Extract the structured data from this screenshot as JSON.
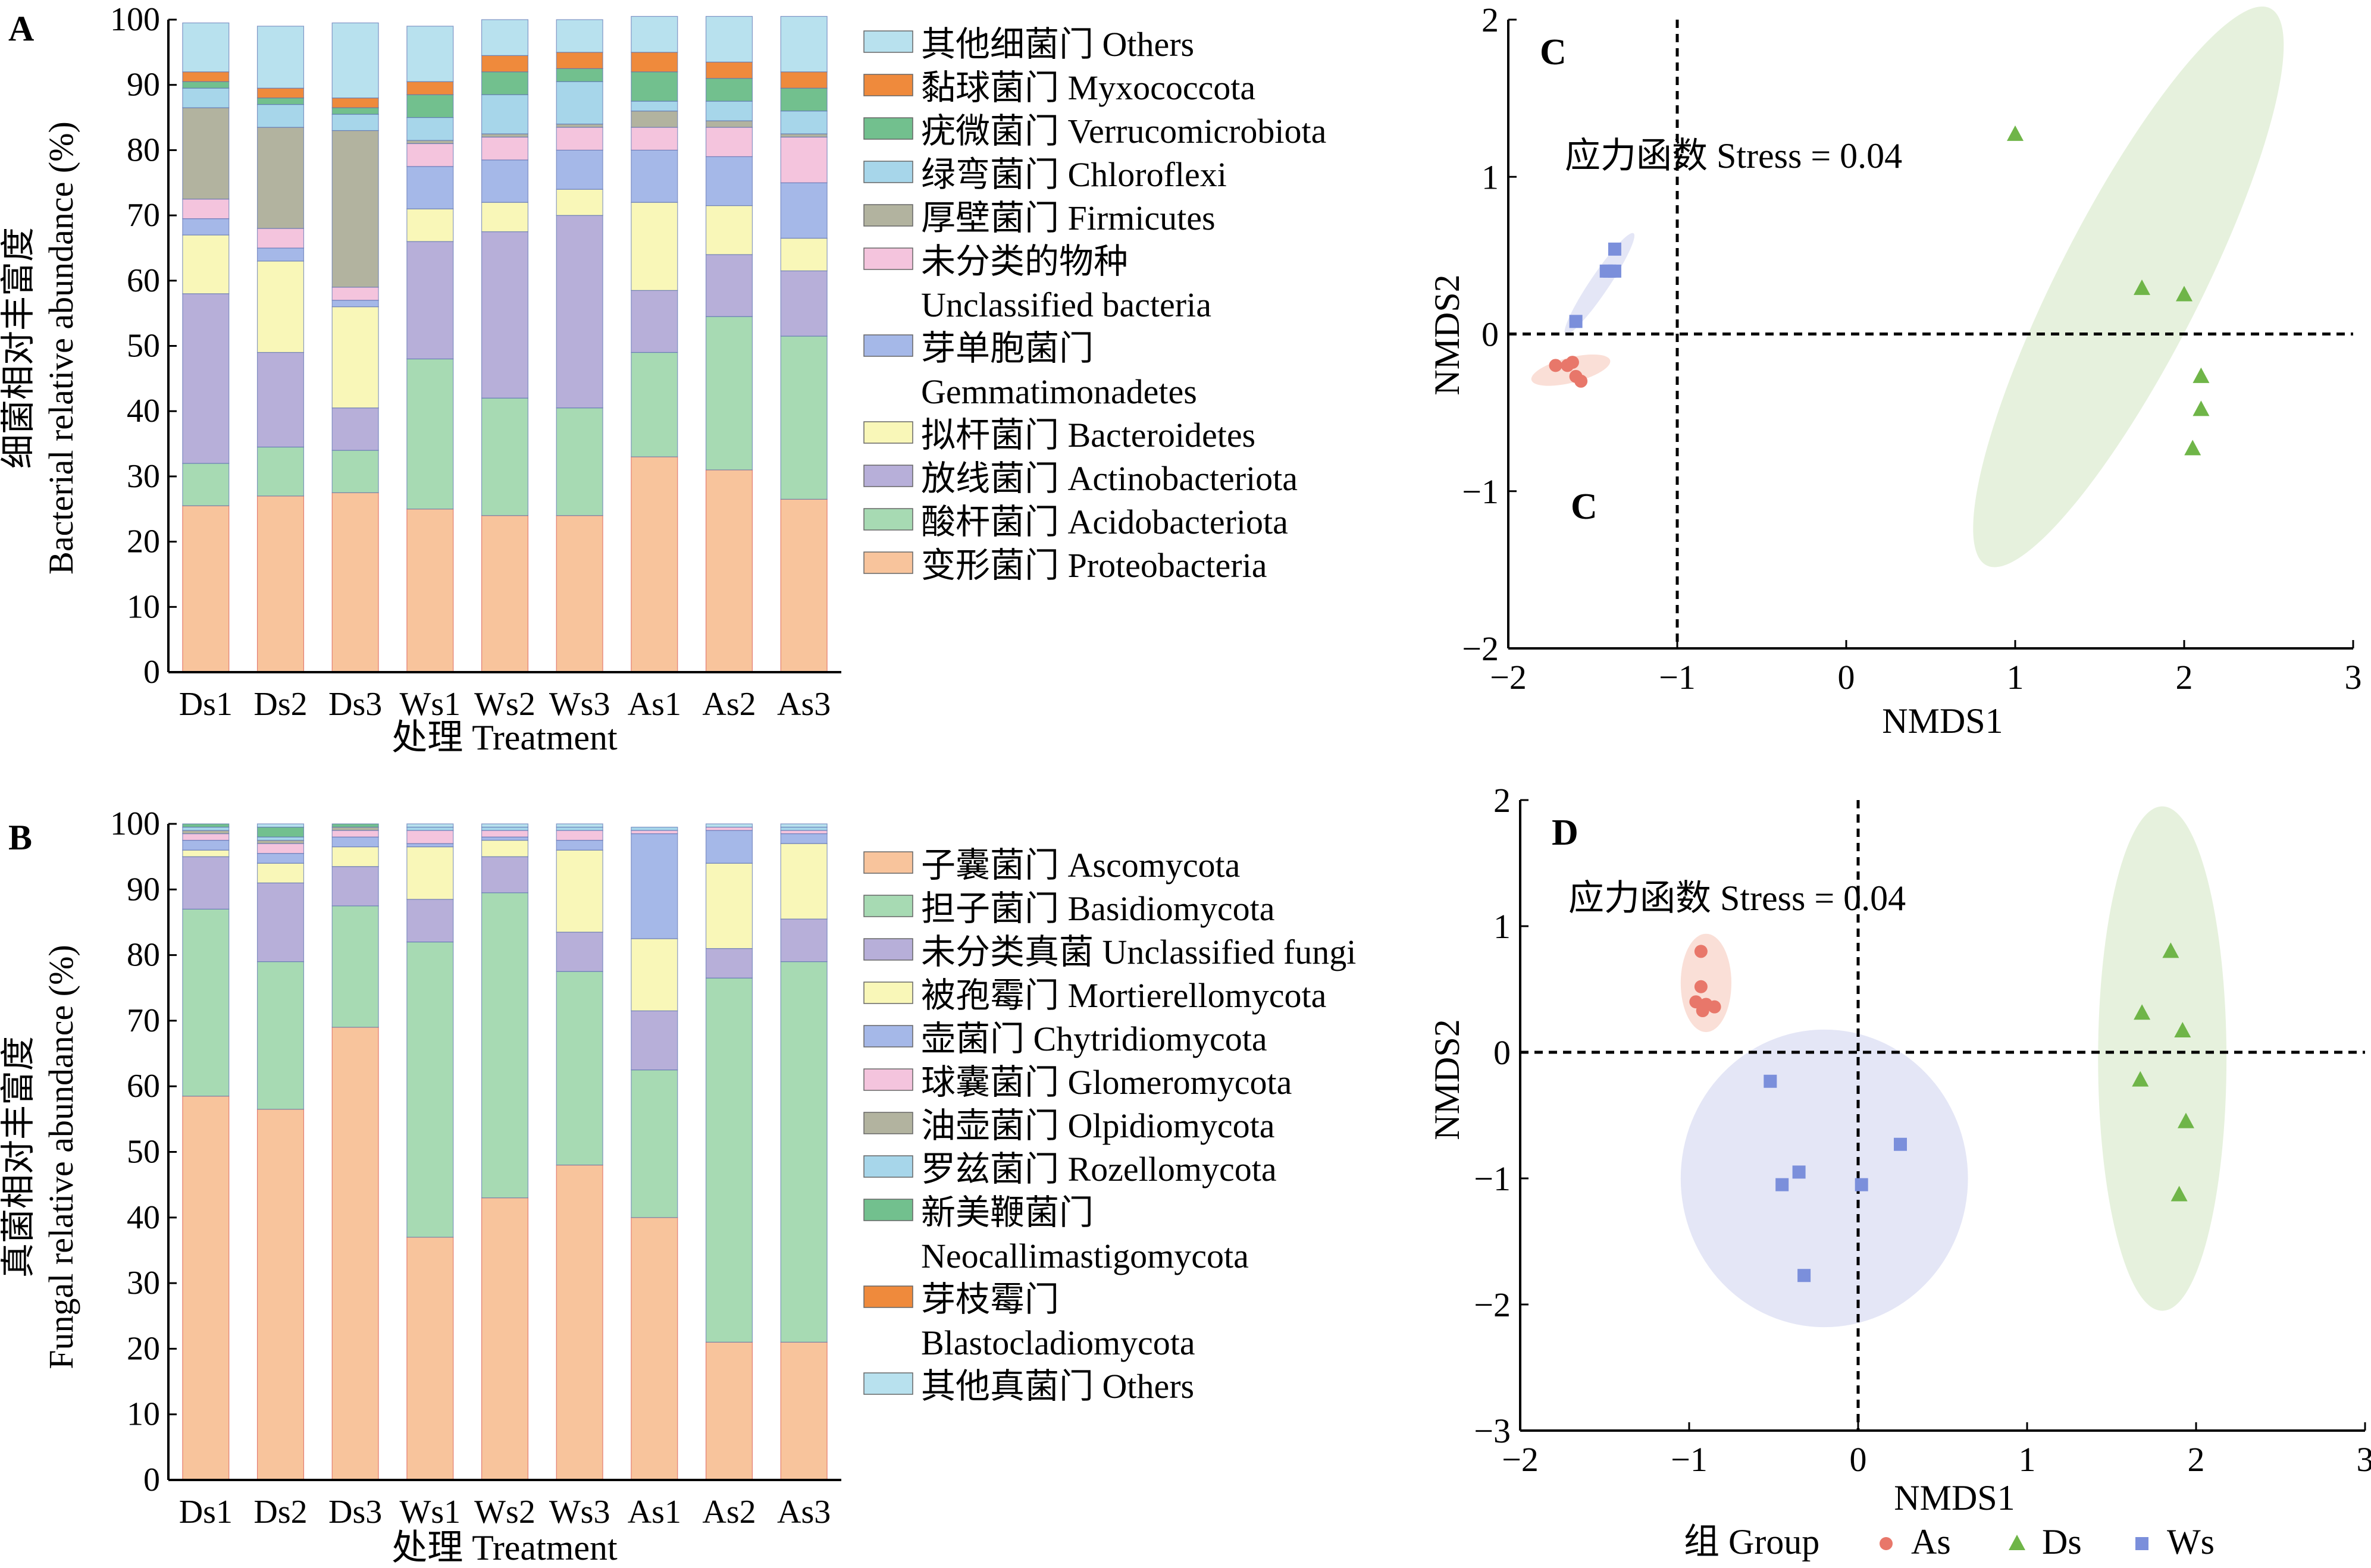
{
  "figure": {
    "panel_letters": [
      "A",
      "B",
      "C",
      "D"
    ],
    "extra_c_label": "C"
  },
  "chart_data": [
    {
      "panel": "A",
      "type": "bar",
      "stacked": true,
      "xlabel": "处理 Treatment",
      "ylabel_cn": "细菌相对丰富度",
      "ylabel_en": "Bacterial relative abundance (%)",
      "ylim": [
        0,
        100
      ],
      "yticks": [
        0,
        10,
        20,
        30,
        40,
        50,
        60,
        70,
        80,
        90,
        100
      ],
      "categories": [
        "Ds1",
        "Ds2",
        "Ds3",
        "Ws1",
        "Ws2",
        "Ws3",
        "As1",
        "As2",
        "As3"
      ],
      "series": [
        {
          "name": "变形菌门 Proteobacteria",
          "color": "#f8c49c",
          "values": [
            25.5,
            27.0,
            27.5,
            25.0,
            24.0,
            24.0,
            33.0,
            31.0,
            26.5
          ]
        },
        {
          "name": "酸杆菌门 Acidobacteriota",
          "color": "#a7dab3",
          "values": [
            6.5,
            7.5,
            6.5,
            23.0,
            18.0,
            16.5,
            16.0,
            23.5,
            25.0
          ]
        },
        {
          "name": "放线菌门 Actinobacteriota",
          "color": "#b7afd9",
          "values": [
            26.0,
            14.5,
            6.5,
            18.0,
            25.5,
            29.5,
            9.5,
            9.5,
            10.0
          ]
        },
        {
          "name": "拟杆菌门 Bacteroidetes",
          "color": "#f9f7b8",
          "values": [
            9.0,
            14.0,
            15.5,
            5.0,
            4.5,
            4.0,
            13.5,
            7.5,
            5.0
          ]
        },
        {
          "name": "芽单胞菌门 Gemmatimonadetes",
          "color": "#a5b8e8",
          "values": [
            2.5,
            2.0,
            1.0,
            6.5,
            6.5,
            6.0,
            8.0,
            7.5,
            8.5
          ]
        },
        {
          "name": "未分类的物种 Unclassified bacteria",
          "color": "#f4c4dd",
          "values": [
            3.0,
            3.0,
            2.0,
            3.5,
            3.5,
            3.5,
            3.5,
            4.5,
            7.0
          ]
        },
        {
          "name": "厚壁菌门 Firmicutes",
          "color": "#b2b39f",
          "values": [
            14.0,
            15.5,
            24.0,
            0.5,
            0.5,
            0.5,
            2.5,
            1.0,
            0.5
          ]
        },
        {
          "name": "绿弯菌门 Chloroflexi",
          "color": "#a7d6ea",
          "values": [
            3.0,
            3.5,
            2.5,
            3.5,
            6.0,
            6.5,
            1.5,
            3.0,
            3.5
          ]
        },
        {
          "name": "疣微菌门 Verrucomicrobiota",
          "color": "#72c08e",
          "values": [
            1.0,
            1.0,
            1.0,
            3.5,
            3.5,
            2.0,
            4.5,
            3.5,
            3.5
          ]
        },
        {
          "name": "黏球菌门 Myxococcota",
          "color": "#ef8a3c",
          "values": [
            1.5,
            1.5,
            1.5,
            2.0,
            2.5,
            2.5,
            3.0,
            2.5,
            2.5
          ]
        },
        {
          "name": "其他细菌门 Others",
          "color": "#b8e1ee",
          "values": [
            7.5,
            9.5,
            11.5,
            8.5,
            5.5,
            5.0,
            5.5,
            7.0,
            8.5
          ]
        }
      ]
    },
    {
      "panel": "B",
      "type": "bar",
      "stacked": true,
      "xlabel": "处理 Treatment",
      "ylabel_cn": "真菌相对丰富度",
      "ylabel_en": "Fungal relative abundance (%)",
      "ylim": [
        0,
        100
      ],
      "yticks": [
        0,
        10,
        20,
        30,
        40,
        50,
        60,
        70,
        80,
        90,
        100
      ],
      "categories": [
        "Ds1",
        "Ds2",
        "Ds3",
        "Ws1",
        "Ws2",
        "Ws3",
        "As1",
        "As2",
        "As3"
      ],
      "series": [
        {
          "name": "子囊菌门 Ascomycota",
          "color": "#f8c49c",
          "values": [
            58.5,
            56.5,
            69.0,
            37.0,
            43.0,
            48.0,
            40.0,
            21.0,
            21.0
          ]
        },
        {
          "name": "担子菌门 Basidiomycota",
          "color": "#a7dab3",
          "values": [
            28.5,
            22.5,
            18.5,
            45.0,
            46.5,
            29.5,
            22.5,
            55.5,
            58.0
          ]
        },
        {
          "name": "未分类真菌 Unclassified fungi",
          "color": "#b7afd9",
          "values": [
            8.0,
            12.0,
            6.0,
            6.5,
            5.5,
            6.0,
            9.0,
            4.5,
            6.5
          ]
        },
        {
          "name": "被孢霉门 Mortierellomycota",
          "color": "#f9f7b8",
          "values": [
            1.0,
            3.0,
            3.0,
            8.0,
            2.5,
            12.5,
            11.0,
            13.0,
            11.5
          ]
        },
        {
          "name": "壶菌门 Chytridiomycota",
          "color": "#a5b8e8",
          "values": [
            1.5,
            1.5,
            1.5,
            0.5,
            0.5,
            1.5,
            16.0,
            5.0,
            1.5
          ]
        },
        {
          "name": "球囊菌门 Glomeromycota",
          "color": "#f4c4dd",
          "values": [
            1.0,
            1.5,
            1.0,
            2.0,
            1.0,
            1.5,
            0.5,
            0.5,
            0.5
          ]
        },
        {
          "name": "油壶菌门 Olpidiomycota",
          "color": "#b2b39f",
          "values": [
            0.5,
            0.5,
            0.5,
            0.0,
            0.0,
            0.0,
            0.0,
            0.0,
            0.0
          ]
        },
        {
          "name": "罗兹菌门 Rozellomycota",
          "color": "#a7d6ea",
          "values": [
            0.5,
            0.5,
            0.0,
            0.5,
            0.5,
            0.5,
            0.5,
            0.0,
            0.5
          ]
        },
        {
          "name": "新美鞭菌门 Neocallimastigomycota",
          "color": "#72c08e",
          "values": [
            0.5,
            1.5,
            0.5,
            0.0,
            0.0,
            0.0,
            0.0,
            0.0,
            0.0
          ]
        },
        {
          "name": "芽枝霉门 Blastocladiomycota",
          "color": "#ef8a3c",
          "values": [
            0.0,
            0.0,
            0.0,
            0.0,
            0.0,
            0.0,
            0.0,
            0.0,
            0.0
          ]
        },
        {
          "name": "其他真菌门 Others",
          "color": "#b8e1ee",
          "values": [
            0.0,
            0.5,
            0.0,
            0.5,
            0.5,
            0.5,
            0.0,
            0.5,
            0.5
          ]
        }
      ]
    },
    {
      "panel": "C",
      "type": "scatter",
      "xlabel": "NMDS1",
      "ylabel": "NMDS2",
      "xlim": [
        -2,
        3
      ],
      "ylim": [
        -2,
        2
      ],
      "xticks": [
        -2,
        -1,
        0,
        1,
        2,
        3
      ],
      "yticks": [
        -2,
        -1,
        0,
        1,
        2
      ],
      "stress_label": "应力函数 Stress = 0.04",
      "ref_lines": {
        "x": -1,
        "y": 0
      },
      "series": [
        {
          "name": "As",
          "marker": "circle",
          "color": "#e8776a",
          "ellipse_color": "#f9dcd3",
          "points": [
            [
              -1.72,
              -0.2
            ],
            [
              -1.65,
              -0.2
            ],
            [
              -1.62,
              -0.18
            ],
            [
              -1.6,
              -0.27
            ],
            [
              -1.57,
              -0.3
            ]
          ],
          "ellipse": {
            "cx": -1.63,
            "cy": -0.23,
            "rx": 0.24,
            "ry": 0.08,
            "angle": -14
          }
        },
        {
          "name": "Ds",
          "marker": "triangle",
          "color": "#6fb548",
          "ellipse_color": "#e3f0d9",
          "points": [
            [
              1.0,
              1.27
            ],
            [
              1.75,
              0.29
            ],
            [
              2.0,
              0.25
            ],
            [
              2.1,
              -0.27
            ],
            [
              2.1,
              -0.48
            ],
            [
              2.05,
              -0.73
            ]
          ],
          "ellipse": {
            "cx": 1.67,
            "cy": 0.3,
            "rx": 1.85,
            "ry": 0.45,
            "angle": -63
          }
        },
        {
          "name": "Ws",
          "marker": "square",
          "color": "#7b8fdb",
          "ellipse_color": "#e1e3f5",
          "points": [
            [
              -1.6,
              0.08
            ],
            [
              -1.42,
              0.4
            ],
            [
              -1.4,
              0.4
            ],
            [
              -1.37,
              0.4
            ],
            [
              -1.37,
              0.54
            ]
          ],
          "ellipse": {
            "cx": -1.46,
            "cy": 0.32,
            "rx": 0.36,
            "ry": 0.06,
            "angle": -56
          }
        }
      ]
    },
    {
      "panel": "D",
      "type": "scatter",
      "xlabel": "NMDS1",
      "ylabel": "NMDS2",
      "xlim": [
        -2,
        3
      ],
      "ylim": [
        -3,
        2
      ],
      "xticks": [
        -2,
        -1,
        0,
        1,
        2,
        3
      ],
      "yticks": [
        -3,
        -2,
        -1,
        0,
        1,
        2
      ],
      "stress_label": "应力函数 Stress = 0.04",
      "ref_lines": {
        "x": 0,
        "y": 0
      },
      "legend": {
        "title": "组 Group",
        "placement": "bottom",
        "entries": [
          "As",
          "Ds",
          "Ws"
        ]
      },
      "series": [
        {
          "name": "As",
          "marker": "circle",
          "color": "#e8776a",
          "ellipse_color": "#f9dcd3",
          "points": [
            [
              -0.93,
              0.8
            ],
            [
              -0.93,
              0.52
            ],
            [
              -0.96,
              0.4
            ],
            [
              -0.9,
              0.38
            ],
            [
              -0.85,
              0.36
            ],
            [
              -0.92,
              0.33
            ]
          ],
          "ellipse": {
            "cx": -0.9,
            "cy": 0.55,
            "rx": 0.15,
            "ry": 0.39,
            "angle": 0
          }
        },
        {
          "name": "Ds",
          "marker": "triangle",
          "color": "#6fb548",
          "ellipse_color": "#e3f0d9",
          "points": [
            [
              1.85,
              0.8
            ],
            [
              1.68,
              0.31
            ],
            [
              1.92,
              0.17
            ],
            [
              1.67,
              -0.22
            ],
            [
              1.94,
              -0.55
            ],
            [
              1.9,
              -1.13
            ]
          ],
          "ellipse": {
            "cx": 1.8,
            "cy": -0.05,
            "rx": 0.38,
            "ry": 2.0,
            "angle": 0
          }
        },
        {
          "name": "Ws",
          "marker": "square",
          "color": "#7b8fdb",
          "ellipse_color": "#e1e3f5",
          "points": [
            [
              -0.52,
              -0.23
            ],
            [
              -0.35,
              -0.95
            ],
            [
              -0.45,
              -1.05
            ],
            [
              0.25,
              -0.73
            ],
            [
              0.02,
              -1.05
            ],
            [
              -0.32,
              -1.77
            ]
          ],
          "ellipse": {
            "cx": -0.2,
            "cy": -1.0,
            "rx": 0.85,
            "ry": 1.18,
            "angle": 0
          }
        }
      ]
    }
  ]
}
